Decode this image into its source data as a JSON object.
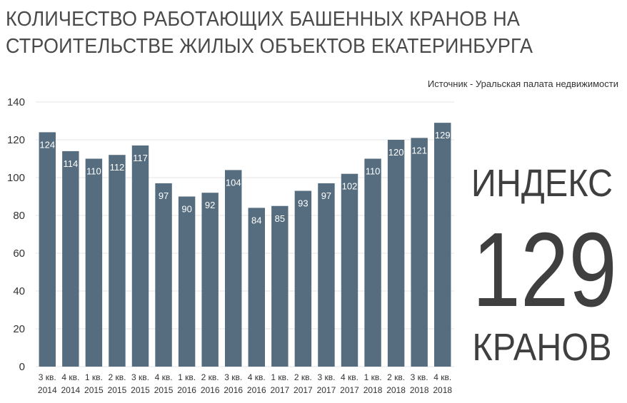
{
  "title_line1": "КОЛИЧЕСТВО РАБОТАЮЩИХ БАШЕННЫХ КРАНОВ НА",
  "title_line2": "СТРОИТЕЛЬСТВЕ ЖИЛЫХ ОБЪЕКТОВ ЕКАТЕРИНБУРГА",
  "source": "Источник - Уральская палата недвижимости",
  "side_panel": {
    "top_label": "ИНДЕКС",
    "number": "129",
    "bottom_label": "КРАНОВ"
  },
  "colors": {
    "bar": "#566d80",
    "bar_label": "#ffffff",
    "grid": "#e6e6e6",
    "text": "#3d3d3d"
  },
  "chart_data": {
    "type": "bar",
    "title": "КОЛИЧЕСТВО РАБОТАЮЩИХ БАШЕННЫХ КРАНОВ НА СТРОИТЕЛЬСТВЕ ЖИЛЫХ ОБЪЕКТОВ ЕКАТЕРИНБУРГА",
    "categories": [
      [
        "3 кв.",
        "2014"
      ],
      [
        "4 кв.",
        "2014"
      ],
      [
        "1 кв.",
        "2015"
      ],
      [
        "2 кв.",
        "2015"
      ],
      [
        "3 кв.",
        "2015"
      ],
      [
        "4 кв.",
        "2015"
      ],
      [
        "1 кв.",
        "2016"
      ],
      [
        "2 кв.",
        "2016"
      ],
      [
        "3 кв.",
        "2016"
      ],
      [
        "4 кв.",
        "2016"
      ],
      [
        "1 кв.",
        "2017"
      ],
      [
        "2 кв.",
        "2017"
      ],
      [
        "3 кв.",
        "2017"
      ],
      [
        "4 кв.",
        "2017"
      ],
      [
        "1 кв.",
        "2018"
      ],
      [
        "2 кв.",
        "2018"
      ],
      [
        "3 кв.",
        "2018"
      ],
      [
        "4 кв.",
        "2018"
      ]
    ],
    "values": [
      124,
      114,
      110,
      112,
      117,
      97,
      90,
      92,
      104,
      84,
      85,
      93,
      97,
      102,
      110,
      120,
      121,
      129
    ],
    "ylim": [
      0,
      140
    ],
    "yticks": [
      0,
      20,
      40,
      60,
      80,
      100,
      120,
      140
    ],
    "grid": true,
    "data_labels": true,
    "legend": "none",
    "xlabel": "",
    "ylabel": ""
  }
}
